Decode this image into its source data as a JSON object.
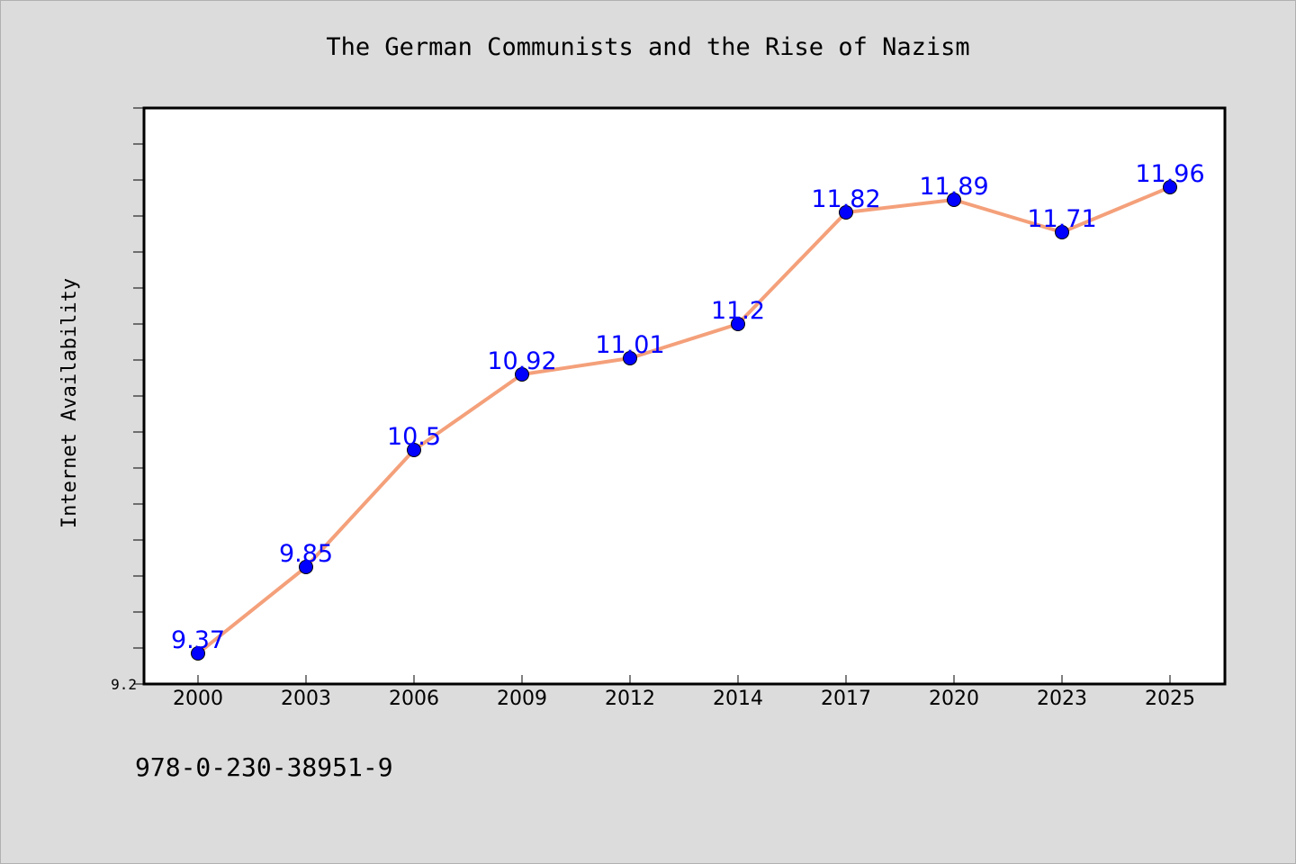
{
  "chart_data": {
    "type": "line",
    "title": "The German Communists and the Rise of Nazism",
    "xlabel": "",
    "ylabel": "Internet Availability",
    "categories": [
      "2000",
      "2003",
      "2006",
      "2009",
      "2012",
      "2014",
      "2017",
      "2020",
      "2023",
      "2025"
    ],
    "series": [
      {
        "values": [
          9.37,
          9.85,
          10.5,
          10.92,
          11.01,
          11.2,
          11.82,
          11.89,
          11.71,
          11.96
        ],
        "labels": [
          "9.37",
          "9.85",
          "10.5",
          "10.92",
          "11.01",
          "11.2",
          "11.82",
          "11.89",
          "11.71",
          "11.96"
        ],
        "line_color": "#f4a07a",
        "marker_color": "#0000ff",
        "label_color": "#0000ff"
      }
    ],
    "ylim": [
      9.2,
      12.4
    ],
    "y_tick_labels": [
      "9.2"
    ],
    "y_minor_step": 0.2,
    "grid": false,
    "legend": "none"
  },
  "footer": {
    "isbn": "978-0-230-38951-9"
  },
  "colors": {
    "background": "#dcdcdc",
    "plot_background": "#ffffff",
    "axis": "#000000"
  }
}
